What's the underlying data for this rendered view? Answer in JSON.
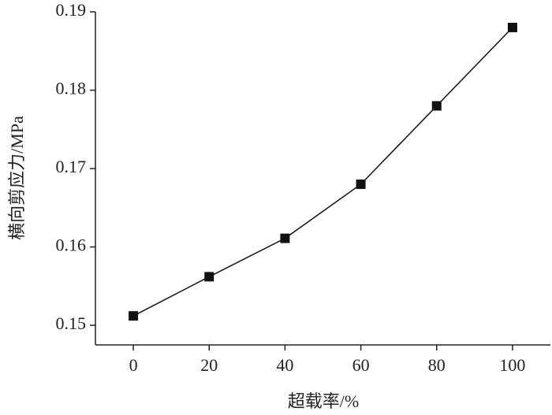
{
  "chart_data": {
    "type": "line",
    "x_label": "超载率/%",
    "y_label": "横向剪应力/MPa",
    "x": [
      0,
      20,
      40,
      60,
      80,
      100
    ],
    "series": [
      {
        "color": "#111111",
        "values": [
          0.1512,
          0.1562,
          0.1611,
          0.168,
          0.178,
          0.188
        ]
      }
    ],
    "xlim": [
      -10,
      110
    ],
    "xticks": [
      0,
      20,
      40,
      60,
      80,
      100
    ],
    "ylim": [
      0.1475,
      0.19
    ],
    "yticks": [
      0.15,
      0.16,
      0.17,
      0.18,
      0.19
    ],
    "grid": false,
    "marker": "square"
  }
}
